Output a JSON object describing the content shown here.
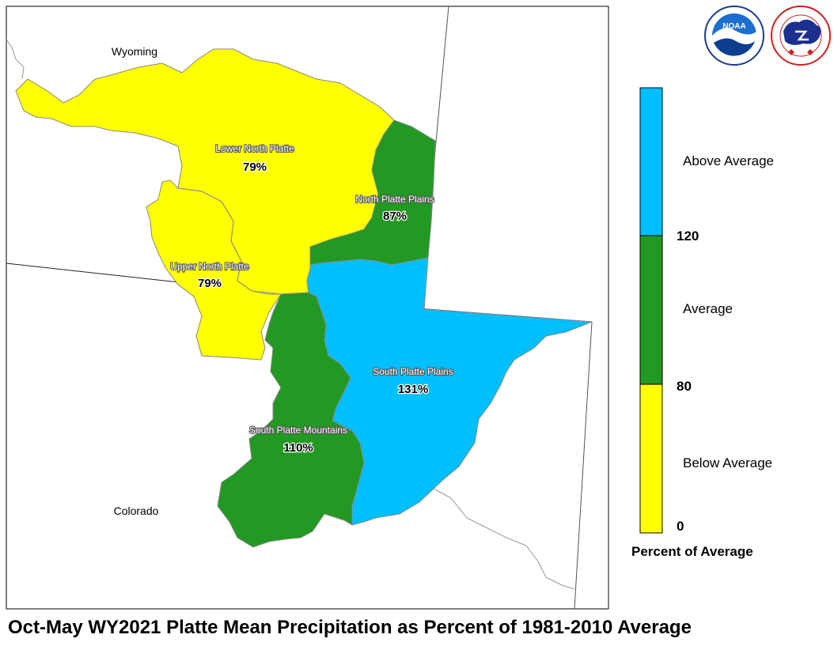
{
  "title": "Oct-May WY2021 Platte Mean Precipitation as Percent of 1981-2010 Average",
  "states": {
    "wyoming": "Wyoming",
    "colorado": "Colorado"
  },
  "basins": {
    "lower_north_platte": {
      "name": "Lower North Platte",
      "percent": "79%",
      "category": "Below Average"
    },
    "north_platte_plains": {
      "name": "North Platte Plains",
      "percent": "87%",
      "category": "Average"
    },
    "upper_north_platte": {
      "name": "Upper North Platte",
      "percent": "79%",
      "category": "Below Average"
    },
    "south_platte_plains": {
      "name": "South Platte Plains",
      "percent": "131%",
      "category": "Above Average"
    },
    "south_platte_mountains": {
      "name": "South Platte Mountains",
      "percent": "110%",
      "category": "Average"
    }
  },
  "legend": {
    "title": "Percent of Average",
    "categories": [
      {
        "label": "Above Average",
        "color": "#00bfff"
      },
      {
        "label": "Average",
        "color": "#229922"
      },
      {
        "label": "Below Average",
        "color": "#ffff00"
      }
    ],
    "ticks": [
      "120",
      "80",
      "0"
    ]
  },
  "colors": {
    "below_average": "#ffff00",
    "average": "#229922",
    "above_average": "#00bfff"
  },
  "logos": {
    "noaa": "NOAA",
    "nws": "NATIONAL WEATHER SERVICE",
    "noaa_ring": "NATIONAL OCEANIC AND ATMOSPHERIC ADMINISTRATION · U.S. DEPARTMENT OF COMMERCE"
  }
}
